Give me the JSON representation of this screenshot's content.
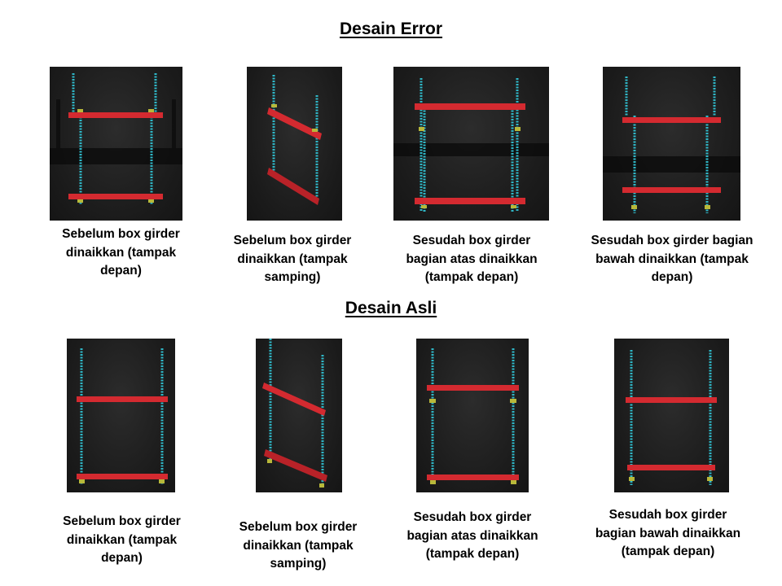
{
  "sections": [
    {
      "title": "Desain Error",
      "panels": [
        {
          "caption": [
            "Sebelum  box girder",
            "dinaikkan (tampak",
            "depan)"
          ]
        },
        {
          "caption": [
            "Sebelum box girder",
            "dinaikkan (tampak",
            "samping)"
          ]
        },
        {
          "caption": [
            "Sesudah box girder",
            "bagian atas  dinaikkan",
            "(tampak depan)"
          ]
        },
        {
          "caption": [
            "Sesudah box girder bagian",
            "bawah dinaikkan (tampak",
            "depan)"
          ]
        }
      ]
    },
    {
      "title": "Desain Asli",
      "panels": [
        {
          "caption": [
            "Sebelum  box girder",
            "dinaikkan (tampak",
            "depan)"
          ]
        },
        {
          "caption": [
            "Sebelum box girder",
            "dinaikkan (tampak",
            "samping)"
          ]
        },
        {
          "caption": [
            "Sesudah box girder",
            "bagian atas  dinaikkan",
            "(tampak depan)"
          ]
        },
        {
          "caption": [
            "Sesudah box girder",
            "bagian bawah dinaikkan",
            "(tampak depan)"
          ]
        }
      ]
    }
  ],
  "colors": {
    "girder": "#d42a30",
    "cable": "#2fb8c8",
    "clamp": "#b8b83a",
    "background": "#1e1e1e"
  }
}
